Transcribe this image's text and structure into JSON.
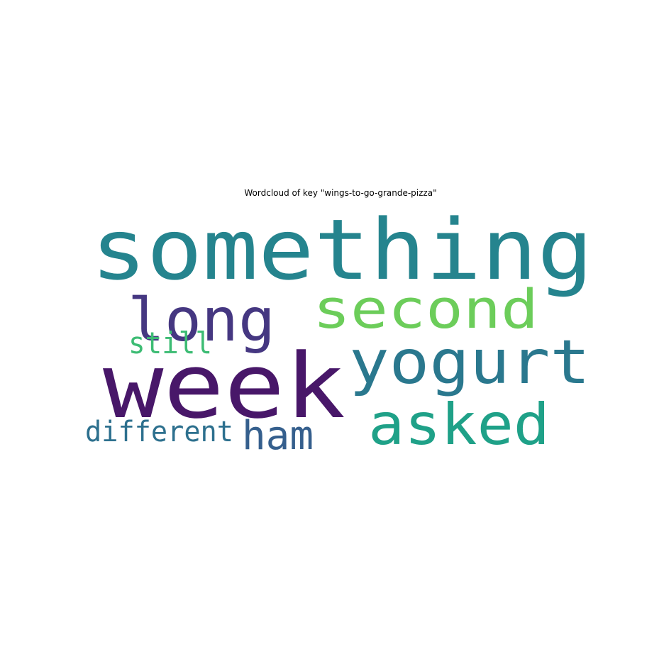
{
  "chart_data": {
    "type": "wordcloud",
    "title": "Wordcloud of key \"wings-to-go-grande-pizza\"",
    "background": "#ffffff",
    "words": [
      {
        "text": "something",
        "color": "#25848e"
      },
      {
        "text": "long",
        "color": "#453781"
      },
      {
        "text": "second",
        "color": "#6ccd5a"
      },
      {
        "text": "yogurt",
        "color": "#2a788e"
      },
      {
        "text": "still",
        "color": "#3dbc74"
      },
      {
        "text": "week",
        "color": "#481769"
      },
      {
        "text": "different",
        "color": "#2d708e"
      },
      {
        "text": "ham",
        "color": "#355f8d"
      },
      {
        "text": "asked",
        "color": "#1fa188"
      }
    ]
  }
}
